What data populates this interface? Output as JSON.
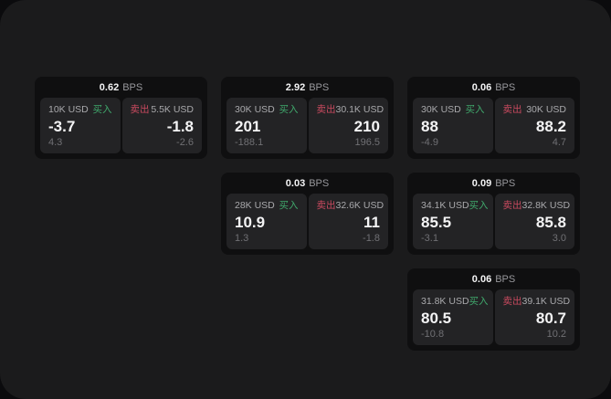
{
  "labels": {
    "bps": "BPS",
    "buy": "买入",
    "sell": "卖出"
  },
  "colors": {
    "panel_bg": "#1b1b1c",
    "card_bg": "#0f0f10",
    "tile_bg": "#232325",
    "buy_green": "#40a86c",
    "sell_red": "#c94a5f",
    "value_white": "#f4f4f5",
    "label_gray": "#a9a9ac",
    "sub_gray": "#707074"
  },
  "cards": [
    {
      "bps": "0.62",
      "buy": {
        "amount": "10K USD",
        "value": "-3.7",
        "sub": "4.3"
      },
      "sell": {
        "amount": "5.5K USD",
        "value": "-1.8",
        "sub": "-2.6"
      }
    },
    {
      "bps": "2.92",
      "buy": {
        "amount": "30K USD",
        "value": "201",
        "sub": "-188.1"
      },
      "sell": {
        "amount": "30.1K USD",
        "value": "210",
        "sub": "196.5"
      }
    },
    {
      "bps": "0.06",
      "buy": {
        "amount": "30K USD",
        "value": "88",
        "sub": "-4.9"
      },
      "sell": {
        "amount": "30K USD",
        "value": "88.2",
        "sub": "4.7"
      }
    },
    {
      "bps": "0.03",
      "buy": {
        "amount": "28K USD",
        "value": "10.9",
        "sub": "1.3"
      },
      "sell": {
        "amount": "32.6K USD",
        "value": "11",
        "sub": "-1.8"
      }
    },
    {
      "bps": "0.09",
      "buy": {
        "amount": "34.1K USD",
        "value": "85.5",
        "sub": "-3.1"
      },
      "sell": {
        "amount": "32.8K USD",
        "value": "85.8",
        "sub": "3.0"
      }
    },
    {
      "bps": "0.06",
      "buy": {
        "amount": "31.8K USD",
        "value": "80.5",
        "sub": "-10.8"
      },
      "sell": {
        "amount": "39.1K USD",
        "value": "80.7",
        "sub": "10.2"
      }
    }
  ]
}
